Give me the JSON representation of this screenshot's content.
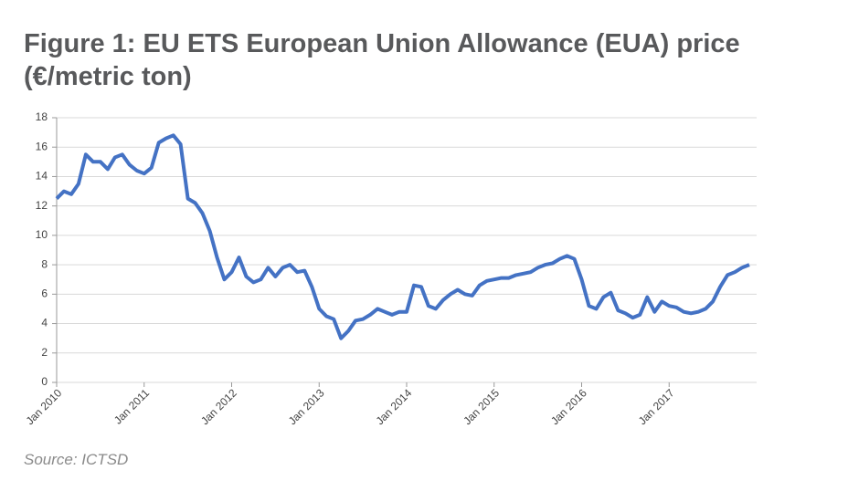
{
  "chart_data": {
    "type": "line",
    "title": "Figure 1: EU ETS European Union Allowance (EUA) price (€/metric ton)",
    "source": "Source: ICTSD",
    "x": [
      "2010-01",
      "2010-02",
      "2010-03",
      "2010-04",
      "2010-05",
      "2010-06",
      "2010-07",
      "2010-08",
      "2010-09",
      "2010-10",
      "2010-11",
      "2010-12",
      "2011-01",
      "2011-02",
      "2011-03",
      "2011-04",
      "2011-05",
      "2011-06",
      "2011-07",
      "2011-08",
      "2011-09",
      "2011-10",
      "2011-11",
      "2011-12",
      "2012-01",
      "2012-02",
      "2012-03",
      "2012-04",
      "2012-05",
      "2012-06",
      "2012-07",
      "2012-08",
      "2012-09",
      "2012-10",
      "2012-11",
      "2012-12",
      "2013-01",
      "2013-02",
      "2013-03",
      "2013-04",
      "2013-05",
      "2013-06",
      "2013-07",
      "2013-08",
      "2013-09",
      "2013-10",
      "2013-11",
      "2013-12",
      "2014-01",
      "2014-02",
      "2014-03",
      "2014-04",
      "2014-05",
      "2014-06",
      "2014-07",
      "2014-08",
      "2014-09",
      "2014-10",
      "2014-11",
      "2014-12",
      "2015-01",
      "2015-02",
      "2015-03",
      "2015-04",
      "2015-05",
      "2015-06",
      "2015-07",
      "2015-08",
      "2015-09",
      "2015-10",
      "2015-11",
      "2015-12",
      "2016-01",
      "2016-02",
      "2016-03",
      "2016-04",
      "2016-05",
      "2016-06",
      "2016-07",
      "2016-08",
      "2016-09",
      "2016-10",
      "2016-11",
      "2016-12",
      "2017-01",
      "2017-02",
      "2017-03",
      "2017-04",
      "2017-05",
      "2017-06",
      "2017-07",
      "2017-08",
      "2017-09",
      "2017-10",
      "2017-11",
      "2017-12"
    ],
    "series": [
      {
        "name": "EUA price",
        "color": "#4472c4",
        "values": [
          12.5,
          13,
          12.8,
          13.5,
          15.5,
          15,
          15,
          14.5,
          15.3,
          15.5,
          14.8,
          14.4,
          14.2,
          14.6,
          16.3,
          16.6,
          16.8,
          16.2,
          12.5,
          12.2,
          11.5,
          10.3,
          8.5,
          7.0,
          7.5,
          8.5,
          7.2,
          6.8,
          7.0,
          7.8,
          7.2,
          7.8,
          8.0,
          7.5,
          7.6,
          6.5,
          5.0,
          4.5,
          4.3,
          3.0,
          3.5,
          4.2,
          4.3,
          4.6,
          5.0,
          4.8,
          4.6,
          4.8,
          4.8,
          6.6,
          6.5,
          5.2,
          5.0,
          5.6,
          6.0,
          6.3,
          6.0,
          5.9,
          6.6,
          6.9,
          7.0,
          7.1,
          7.1,
          7.3,
          7.4,
          7.5,
          7.8,
          8.0,
          8.1,
          8.4,
          8.6,
          8.4,
          7.0,
          5.2,
          5.0,
          5.8,
          6.1,
          4.9,
          4.7,
          4.4,
          4.6,
          5.8,
          4.8,
          5.5,
          5.2,
          5.1,
          4.8,
          4.7,
          4.8,
          5.0,
          5.5,
          6.5,
          7.3,
          7.5,
          7.8,
          8.0
        ]
      }
    ],
    "xlim": [
      "2010-01",
      "2018-01"
    ],
    "xticks": [
      {
        "value": "2010-01",
        "label": "Jan 2010"
      },
      {
        "value": "2011-01",
        "label": "Jan 2011"
      },
      {
        "value": "2012-01",
        "label": "Jan 2012"
      },
      {
        "value": "2013-01",
        "label": "Jan 2013"
      },
      {
        "value": "2014-01",
        "label": "Jan 2014"
      },
      {
        "value": "2015-01",
        "label": "Jan 2015"
      },
      {
        "value": "2016-01",
        "label": "Jan 2016"
      },
      {
        "value": "2017-01",
        "label": "Jan 2017"
      }
    ],
    "ylim": [
      0,
      18
    ],
    "yticks": [
      0,
      2,
      4,
      6,
      8,
      10,
      12,
      14,
      16,
      18
    ],
    "grid": true
  }
}
